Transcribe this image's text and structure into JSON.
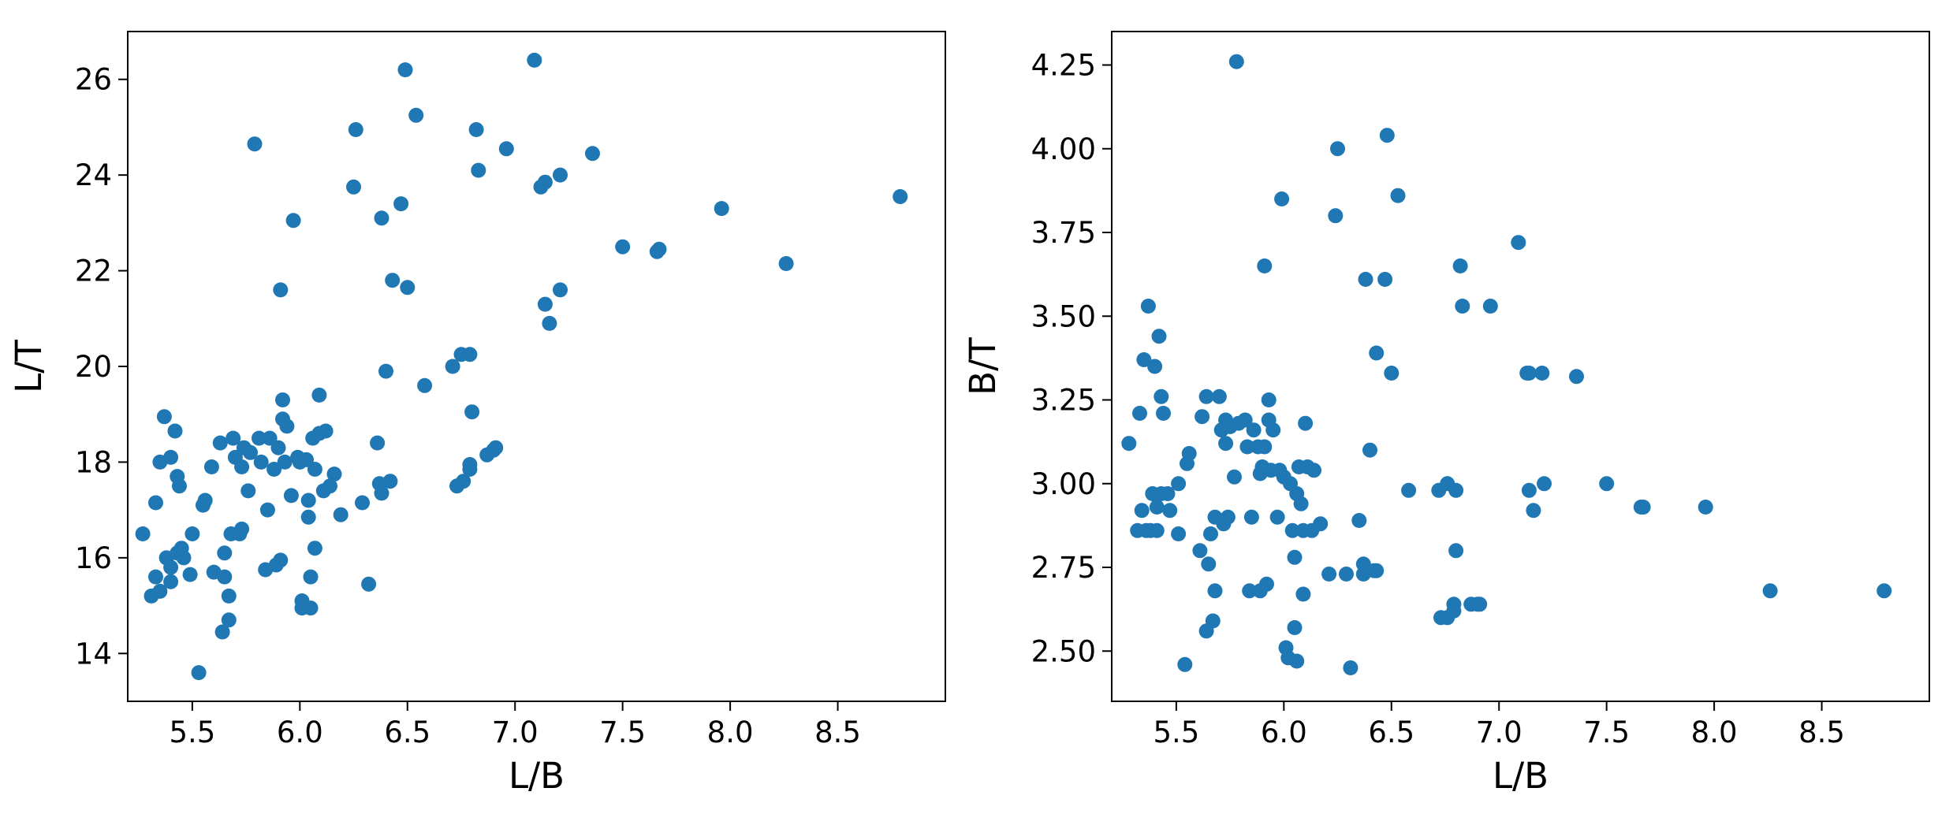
{
  "chart_data": [
    {
      "type": "scatter",
      "xlabel": "L/B",
      "ylabel": "L/T",
      "xlim": [
        5.2,
        9.0
      ],
      "ylim": [
        13.0,
        27.0
      ],
      "xticks": [
        "5.5",
        "6.0",
        "6.5",
        "7.0",
        "7.5",
        "8.0",
        "8.5"
      ],
      "yticks": [
        "14",
        "16",
        "18",
        "20",
        "22",
        "24",
        "26"
      ],
      "grid": false,
      "marker_color": "#1f77b4",
      "points": [
        [
          5.27,
          16.5
        ],
        [
          5.31,
          15.2
        ],
        [
          5.33,
          15.6
        ],
        [
          5.33,
          17.15
        ],
        [
          5.35,
          15.3
        ],
        [
          5.35,
          18.0
        ],
        [
          5.37,
          18.95
        ],
        [
          5.38,
          16.0
        ],
        [
          5.4,
          15.5
        ],
        [
          5.4,
          15.8
        ],
        [
          5.4,
          18.1
        ],
        [
          5.42,
          18.65
        ],
        [
          5.43,
          16.1
        ],
        [
          5.43,
          17.7
        ],
        [
          5.44,
          17.5
        ],
        [
          5.45,
          16.2
        ],
        [
          5.46,
          16.0
        ],
        [
          5.49,
          15.65
        ],
        [
          5.5,
          16.5
        ],
        [
          5.53,
          13.6
        ],
        [
          5.55,
          17.1
        ],
        [
          5.56,
          17.2
        ],
        [
          5.59,
          17.9
        ],
        [
          5.6,
          15.7
        ],
        [
          5.63,
          18.4
        ],
        [
          5.64,
          14.45
        ],
        [
          5.65,
          16.1
        ],
        [
          5.65,
          15.6
        ],
        [
          5.67,
          14.7
        ],
        [
          5.67,
          15.2
        ],
        [
          5.68,
          16.5
        ],
        [
          5.69,
          18.5
        ],
        [
          5.7,
          18.1
        ],
        [
          5.72,
          16.5
        ],
        [
          5.73,
          17.9
        ],
        [
          5.73,
          16.6
        ],
        [
          5.74,
          18.3
        ],
        [
          5.76,
          17.4
        ],
        [
          5.77,
          18.2
        ],
        [
          5.79,
          24.65
        ],
        [
          5.81,
          18.5
        ],
        [
          5.82,
          18.0
        ],
        [
          5.84,
          15.75
        ],
        [
          5.85,
          17.0
        ],
        [
          5.86,
          18.5
        ],
        [
          5.88,
          17.85
        ],
        [
          5.89,
          15.85
        ],
        [
          5.9,
          18.3
        ],
        [
          5.91,
          21.6
        ],
        [
          5.91,
          15.95
        ],
        [
          5.92,
          19.3
        ],
        [
          5.92,
          18.9
        ],
        [
          5.93,
          18.0
        ],
        [
          5.94,
          18.75
        ],
        [
          5.96,
          17.3
        ],
        [
          5.97,
          23.05
        ],
        [
          5.99,
          18.1
        ],
        [
          6.0,
          18.0
        ],
        [
          6.01,
          15.1
        ],
        [
          6.01,
          14.95
        ],
        [
          6.03,
          18.05
        ],
        [
          6.04,
          17.2
        ],
        [
          6.04,
          16.85
        ],
        [
          6.05,
          15.6
        ],
        [
          6.05,
          14.95
        ],
        [
          6.06,
          18.5
        ],
        [
          6.07,
          17.85
        ],
        [
          6.07,
          16.2
        ],
        [
          6.09,
          19.4
        ],
        [
          6.09,
          18.6
        ],
        [
          6.11,
          17.4
        ],
        [
          6.12,
          18.65
        ],
        [
          6.14,
          17.5
        ],
        [
          6.16,
          17.75
        ],
        [
          6.19,
          16.9
        ],
        [
          6.25,
          23.75
        ],
        [
          6.26,
          24.95
        ],
        [
          6.29,
          17.15
        ],
        [
          6.32,
          15.45
        ],
        [
          6.36,
          18.4
        ],
        [
          6.37,
          17.55
        ],
        [
          6.38,
          23.1
        ],
        [
          6.38,
          17.35
        ],
        [
          6.4,
          19.9
        ],
        [
          6.42,
          17.6
        ],
        [
          6.43,
          21.8
        ],
        [
          6.47,
          23.4
        ],
        [
          6.49,
          26.2
        ],
        [
          6.5,
          21.65
        ],
        [
          6.54,
          25.25
        ],
        [
          6.58,
          19.6
        ],
        [
          6.71,
          20.0
        ],
        [
          6.73,
          17.5
        ],
        [
          6.75,
          20.25
        ],
        [
          6.76,
          17.6
        ],
        [
          6.79,
          20.25
        ],
        [
          6.79,
          17.85
        ],
        [
          6.79,
          17.95
        ],
        [
          6.8,
          19.05
        ],
        [
          6.82,
          24.95
        ],
        [
          6.83,
          24.1
        ],
        [
          6.87,
          18.15
        ],
        [
          6.9,
          18.25
        ],
        [
          6.91,
          18.3
        ],
        [
          6.96,
          24.55
        ],
        [
          7.09,
          26.4
        ],
        [
          7.12,
          23.75
        ],
        [
          7.14,
          23.85
        ],
        [
          7.14,
          21.3
        ],
        [
          7.16,
          20.9
        ],
        [
          7.21,
          24.0
        ],
        [
          7.21,
          21.6
        ],
        [
          7.36,
          24.45
        ],
        [
          7.5,
          22.5
        ],
        [
          7.66,
          22.4
        ],
        [
          7.67,
          22.45
        ],
        [
          7.96,
          23.3
        ],
        [
          8.26,
          22.15
        ],
        [
          8.79,
          23.55
        ]
      ]
    },
    {
      "type": "scatter",
      "xlabel": "L/B",
      "ylabel": "B/T",
      "xlim": [
        5.2,
        9.0
      ],
      "ylim": [
        2.35,
        4.35
      ],
      "xticks": [
        "5.5",
        "6.0",
        "6.5",
        "7.0",
        "7.5",
        "8.0",
        "8.5"
      ],
      "yticks": [
        "2.50",
        "2.75",
        "3.00",
        "3.25",
        "3.50",
        "3.75",
        "4.00",
        "4.25"
      ],
      "grid": false,
      "marker_color": "#1f77b4",
      "points": [
        [
          5.28,
          3.12
        ],
        [
          5.32,
          2.86
        ],
        [
          5.33,
          3.21
        ],
        [
          5.34,
          2.92
        ],
        [
          5.35,
          3.37
        ],
        [
          5.36,
          2.86
        ],
        [
          5.37,
          3.53
        ],
        [
          5.38,
          2.86
        ],
        [
          5.39,
          2.97
        ],
        [
          5.4,
          3.35
        ],
        [
          5.41,
          2.86
        ],
        [
          5.41,
          2.93
        ],
        [
          5.42,
          3.44
        ],
        [
          5.43,
          3.26
        ],
        [
          5.43,
          2.97
        ],
        [
          5.44,
          3.21
        ],
        [
          5.46,
          2.97
        ],
        [
          5.47,
          2.92
        ],
        [
          5.51,
          3.0
        ],
        [
          5.51,
          2.85
        ],
        [
          5.54,
          2.46
        ],
        [
          5.55,
          3.06
        ],
        [
          5.56,
          3.09
        ],
        [
          5.61,
          2.8
        ],
        [
          5.62,
          3.2
        ],
        [
          5.64,
          2.56
        ],
        [
          5.64,
          3.26
        ],
        [
          5.65,
          2.76
        ],
        [
          5.66,
          2.85
        ],
        [
          5.67,
          2.59
        ],
        [
          5.68,
          2.68
        ],
        [
          5.68,
          2.9
        ],
        [
          5.7,
          3.26
        ],
        [
          5.71,
          3.16
        ],
        [
          5.72,
          2.88
        ],
        [
          5.73,
          3.19
        ],
        [
          5.73,
          3.12
        ],
        [
          5.74,
          2.9
        ],
        [
          5.75,
          3.17
        ],
        [
          5.77,
          3.02
        ],
        [
          5.78,
          4.26
        ],
        [
          5.79,
          3.18
        ],
        [
          5.82,
          3.19
        ],
        [
          5.83,
          3.11
        ],
        [
          5.84,
          2.68
        ],
        [
          5.85,
          2.9
        ],
        [
          5.86,
          3.16
        ],
        [
          5.88,
          3.11
        ],
        [
          5.89,
          3.03
        ],
        [
          5.89,
          2.68
        ],
        [
          5.9,
          3.05
        ],
        [
          5.91,
          3.65
        ],
        [
          5.91,
          3.11
        ],
        [
          5.92,
          2.7
        ],
        [
          5.93,
          3.25
        ],
        [
          5.93,
          3.19
        ],
        [
          5.94,
          3.04
        ],
        [
          5.95,
          3.16
        ],
        [
          5.97,
          2.9
        ],
        [
          5.98,
          3.04
        ],
        [
          5.99,
          3.85
        ],
        [
          6.0,
          3.02
        ],
        [
          6.01,
          2.51
        ],
        [
          6.02,
          2.48
        ],
        [
          6.03,
          3.0
        ],
        [
          6.04,
          2.86
        ],
        [
          6.05,
          2.78
        ],
        [
          6.05,
          2.57
        ],
        [
          6.06,
          2.97
        ],
        [
          6.06,
          2.47
        ],
        [
          6.07,
          3.05
        ],
        [
          6.08,
          2.94
        ],
        [
          6.09,
          2.67
        ],
        [
          6.09,
          2.86
        ],
        [
          6.1,
          3.18
        ],
        [
          6.11,
          3.05
        ],
        [
          6.13,
          2.86
        ],
        [
          6.14,
          3.04
        ],
        [
          6.17,
          2.88
        ],
        [
          6.21,
          2.73
        ],
        [
          6.24,
          3.8
        ],
        [
          6.25,
          4.0
        ],
        [
          6.29,
          2.73
        ],
        [
          6.31,
          2.45
        ],
        [
          6.35,
          2.89
        ],
        [
          6.37,
          2.73
        ],
        [
          6.37,
          2.76
        ],
        [
          6.38,
          3.61
        ],
        [
          6.4,
          3.1
        ],
        [
          6.42,
          2.74
        ],
        [
          6.43,
          3.39
        ],
        [
          6.43,
          2.74
        ],
        [
          6.47,
          3.61
        ],
        [
          6.48,
          4.04
        ],
        [
          6.5,
          3.33
        ],
        [
          6.53,
          3.86
        ],
        [
          6.58,
          2.98
        ],
        [
          6.72,
          2.98
        ],
        [
          6.73,
          2.6
        ],
        [
          6.76,
          3.0
        ],
        [
          6.76,
          2.6
        ],
        [
          6.79,
          2.62
        ],
        [
          6.79,
          2.64
        ],
        [
          6.8,
          2.98
        ],
        [
          6.8,
          2.8
        ],
        [
          6.82,
          3.65
        ],
        [
          6.83,
          3.53
        ],
        [
          6.87,
          2.64
        ],
        [
          6.9,
          2.64
        ],
        [
          6.91,
          2.64
        ],
        [
          6.96,
          3.53
        ],
        [
          7.09,
          3.72
        ],
        [
          7.13,
          3.33
        ],
        [
          7.14,
          2.98
        ],
        [
          7.14,
          3.33
        ],
        [
          7.16,
          2.92
        ],
        [
          7.2,
          3.33
        ],
        [
          7.21,
          3.0
        ],
        [
          7.36,
          3.32
        ],
        [
          7.5,
          3.0
        ],
        [
          7.66,
          2.93
        ],
        [
          7.67,
          2.93
        ],
        [
          7.96,
          2.93
        ],
        [
          8.26,
          2.68
        ],
        [
          8.79,
          2.68
        ]
      ]
    }
  ]
}
